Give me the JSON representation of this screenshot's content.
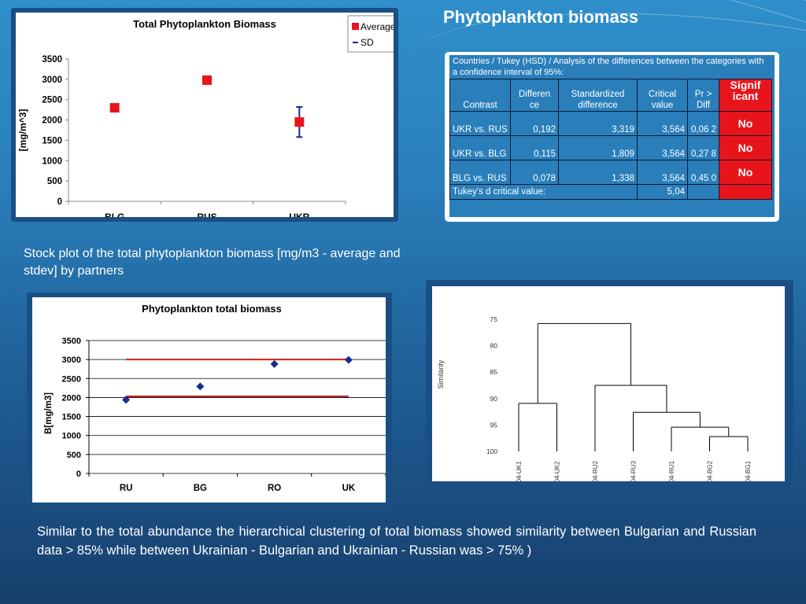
{
  "slide": {
    "title": "Phytoplankton biomass",
    "caption_top": "Stock plot of the total phytoplankton biomass [mg/m3 - average and stdev] by partners",
    "caption_bottom": "Similar to the total abundance the hierarchical clustering of total biomass showed similarity between Bulgarian and Russian data > 85%  while between Ukrainian - Bulgarian and Ukrainian - Russian was > 75% )"
  },
  "tukey": {
    "caption": "Countries / Tukey (HSD) / Analysis of the differences between the categories with a confidence interval of 95%:",
    "headers": [
      "Contrast",
      "Differen ce",
      "Standardized difference",
      "Critical value",
      "Pr > Diff",
      "Signif icant"
    ],
    "rows": [
      [
        "UKR vs. RUS",
        "0,192",
        "3,319",
        "3,564",
        "0,06 2",
        "No"
      ],
      [
        "UKR vs. BLG",
        "0,115",
        "1,809",
        "3,564",
        "0,27 8",
        "No"
      ],
      [
        "BLG vs. RUS",
        "0,078",
        "1,338",
        "3,564",
        "0,45 0",
        "No"
      ]
    ],
    "footer_label": "Tukey's d critical value:",
    "footer_value": "5,04"
  },
  "chart_data": [
    {
      "type": "scatter",
      "title": "Total Phytoplankton Biomass",
      "ylabel": "[mg/m^3]",
      "xlabel": "",
      "categories": [
        "BLG",
        "RUS",
        "UKR"
      ],
      "yticks": [
        "0",
        "500",
        "1000",
        "1500",
        "2000",
        "2500",
        "3000",
        "3500"
      ],
      "ylim": [
        0,
        3500
      ],
      "legend": [
        "Average",
        "SD"
      ],
      "legend_position": "top-right",
      "series": [
        {
          "name": "Average",
          "values": [
            2300,
            2980,
            1950
          ],
          "color": "#e8141c"
        },
        {
          "name": "SD",
          "low": [
            2230,
            2950,
            1580
          ],
          "high": [
            2370,
            3010,
            2320
          ],
          "color": "#1a2a8c"
        }
      ],
      "grid": false
    },
    {
      "type": "scatter",
      "title": "Phytoplankton total biomass",
      "ylabel": "B[mg/m3]",
      "xlabel": "",
      "categories": [
        "RU",
        "BG",
        "RO",
        "UK"
      ],
      "yticks": [
        "0",
        "500",
        "1000",
        "1500",
        "2000",
        "2500",
        "3000",
        "3500"
      ],
      "ylim": [
        0,
        3500
      ],
      "series": [
        {
          "values": [
            1940,
            2290,
            2880,
            2990
          ],
          "color": "#1a2a8c"
        }
      ],
      "reference_lines": [
        {
          "value": 3000,
          "from": "RU",
          "to": "UK",
          "color": "#d11a1a"
        },
        {
          "value": 2030,
          "from": "RU",
          "to": "UK",
          "color": "#d11a1a"
        }
      ],
      "grid": true
    },
    {
      "type": "dendrogram",
      "ylabel": "Similarity",
      "yticks": [
        "75",
        "80",
        "85",
        "90",
        "95",
        "100"
      ],
      "ylim": [
        75,
        100
      ],
      "leaves": [
        "304-UK1",
        "304-UK2",
        "304-RU2",
        "304-RU3",
        "304-RU1",
        "304-BG2",
        "304-BG1"
      ],
      "merges": [
        {
          "left": "304-BG2",
          "right": "304-BG1",
          "similarity": 97.2
        },
        {
          "left": "304-RU1",
          "right": "cluster(304-BG2,304-BG1)",
          "similarity": 95.4
        },
        {
          "left": "304-RU3",
          "right": "cluster(304-RU1,304-BG2,304-BG1)",
          "similarity": 92.6
        },
        {
          "left": "304-UK1",
          "right": "304-UK2",
          "similarity": 90.9
        },
        {
          "left": "304-RU2",
          "right": "cluster(304-RU3,304-RU1,304-BG2,304-BG1)",
          "similarity": 87.5
        },
        {
          "left": "cluster(304-UK1,304-UK2)",
          "right": "cluster(304-RU2,304-RU3,304-RU1,304-BG2,304-BG1)",
          "similarity": 75.8
        }
      ]
    }
  ]
}
